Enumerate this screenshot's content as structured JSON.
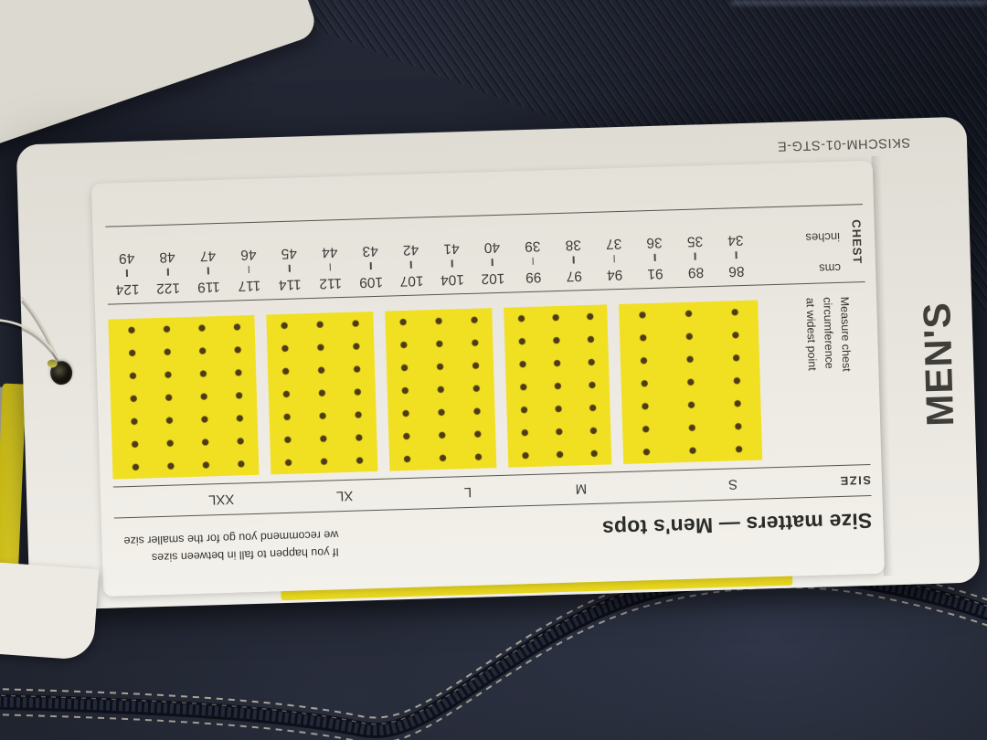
{
  "tag": {
    "product_code": "SKISCHM-01-STG-E",
    "spine_label": "MEN'S",
    "header": {
      "title": "Size matters — Men's tops",
      "note_line1": "If you happen to fall in between sizes",
      "note_line2": "we recommend you go for the smaller size"
    },
    "size_row_label": "SIZE",
    "sizes": [
      "S",
      "M",
      "L",
      "XL",
      "XXL"
    ],
    "measure_note_lines": [
      "Measure chest",
      "circumference",
      "at widest point"
    ],
    "scale": {
      "label": "CHEST",
      "rows": [
        {
          "unit": "cms",
          "values": [
            86,
            89,
            91,
            94,
            97,
            99,
            102,
            104,
            107,
            109,
            112,
            114,
            117,
            119,
            122,
            124
          ]
        },
        {
          "unit": "inches",
          "values": [
            34,
            35,
            36,
            37,
            38,
            39,
            40,
            41,
            42,
            43,
            44,
            45,
            46,
            47,
            48,
            49
          ]
        }
      ]
    },
    "colors": {
      "block_yellow": "#f1df22",
      "dot_brown": "#4e3c14",
      "tag_paper": "#ece9e2",
      "fabric_navy": "#232735",
      "stitch_cream": "#c9c3ae"
    }
  }
}
